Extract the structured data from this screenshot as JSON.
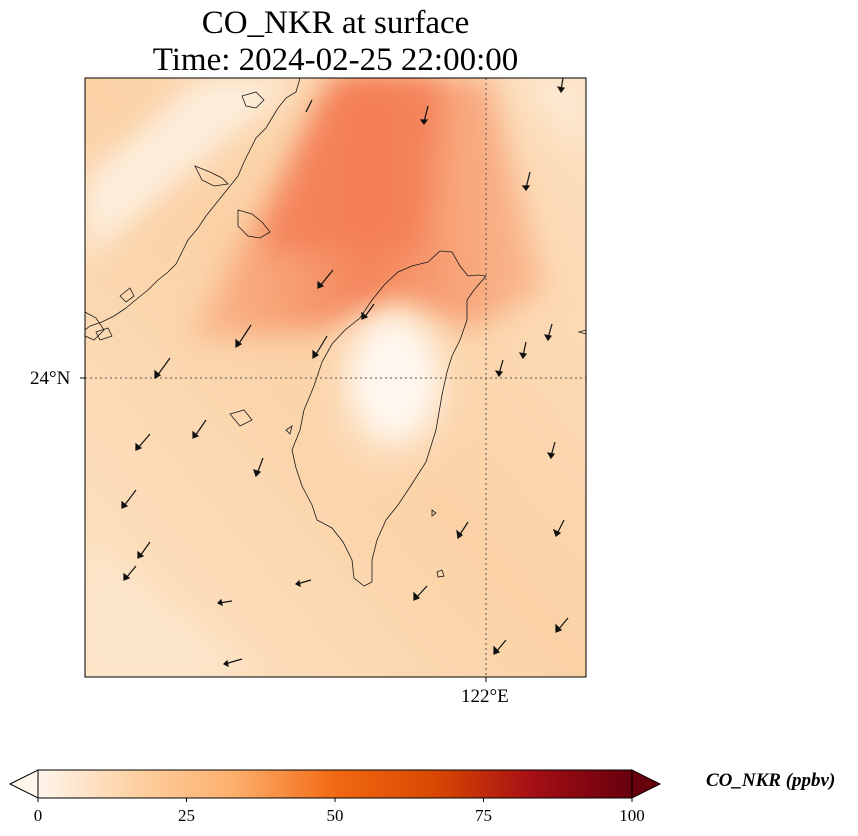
{
  "title": {
    "line1": "CO_NKR at surface",
    "line2": "Time: 2024-02-25 22:00:00"
  },
  "axes": {
    "lat_tick": "24°N",
    "lon_tick": "122°E"
  },
  "colorbar": {
    "label": "CO_NKR (ppbv)",
    "ticks": [
      "0",
      "25",
      "50",
      "75",
      "100"
    ],
    "colors": [
      "#fff5eb",
      "#fdd0a2",
      "#fdae6b",
      "#f16913",
      "#d94801",
      "#a50f15",
      "#67000d"
    ]
  },
  "field_colors": {
    "low": "#fdf1e0",
    "mid": "#fcd3a8",
    "high": "#f5845b"
  }
}
